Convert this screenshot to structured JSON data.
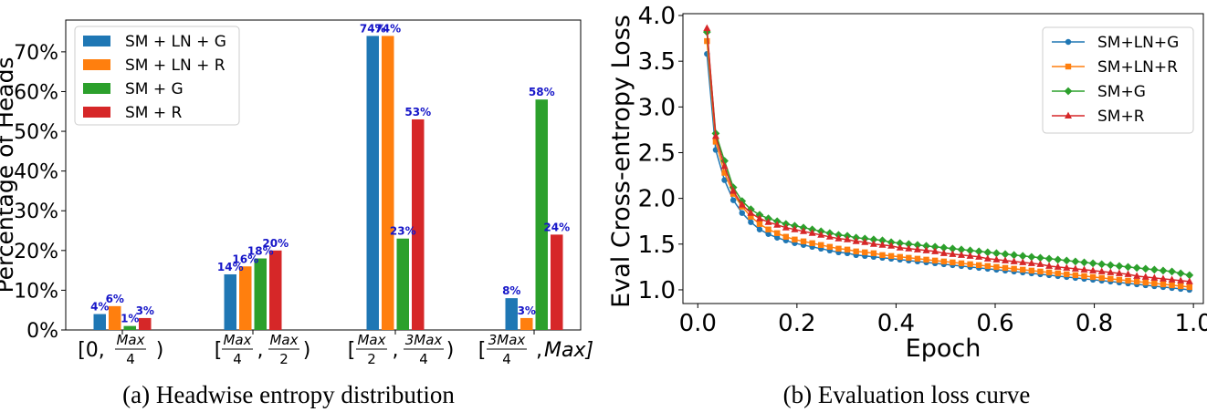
{
  "chart_data": [
    {
      "type": "bar",
      "caption": "(a) Headwise entropy distribution",
      "ylabel": "Percentage of Heads",
      "ylim": [
        0,
        78
      ],
      "yticks": [
        "0%",
        "10%",
        "20%",
        "30%",
        "40%",
        "50%",
        "60%",
        "70%"
      ],
      "yticks_values": [
        0,
        10,
        20,
        30,
        40,
        50,
        60,
        70
      ],
      "categories": [
        "[0, Max/4)",
        "[Max/4, Max/2)",
        "[Max/2, 3Max/4)",
        "[3Max/4, Max]"
      ],
      "legend_position": "top-left",
      "series": [
        {
          "name": "SM + LN + G",
          "color": "#1f77b4",
          "values": [
            4,
            14,
            74,
            8
          ],
          "labels": [
            "4%",
            "14%",
            "74%",
            "8%"
          ]
        },
        {
          "name": "SM + LN + R",
          "color": "#ff7f0e",
          "values": [
            6,
            16,
            74,
            3
          ],
          "labels": [
            "6%",
            "16%",
            "74%",
            "3%"
          ]
        },
        {
          "name": "SM + G",
          "color": "#2ca02c",
          "values": [
            1,
            18,
            23,
            58
          ],
          "labels": [
            "1%",
            "18%",
            "23%",
            "58%"
          ]
        },
        {
          "name": "SM + R",
          "color": "#d62728",
          "values": [
            3,
            20,
            53,
            24
          ],
          "labels": [
            "3%",
            "20%",
            "53%",
            "24%"
          ]
        }
      ]
    },
    {
      "type": "line",
      "caption": "(b) Evaluation loss curve",
      "xlabel": "Epoch",
      "ylabel": "Eval Cross-entropy Loss",
      "xlim": [
        -0.03,
        1.02
      ],
      "ylim": [
        0.85,
        4.02
      ],
      "xticks": [
        "0.0",
        "0.2",
        "0.4",
        "0.6",
        "0.8",
        "1.0"
      ],
      "xticks_values": [
        0.0,
        0.2,
        0.4,
        0.6,
        0.8,
        1.0
      ],
      "yticks": [
        "1.0",
        "1.5",
        "2.0",
        "2.5",
        "3.0",
        "3.5",
        "4.0"
      ],
      "yticks_values": [
        1.0,
        1.5,
        2.0,
        2.5,
        3.0,
        3.5,
        4.0
      ],
      "legend_position": "top-right",
      "x": [
        0.0185,
        0.0362,
        0.0539,
        0.0716,
        0.0893,
        0.107,
        0.1247,
        0.1424,
        0.1601,
        0.1778,
        0.1955,
        0.2132,
        0.2309,
        0.2486,
        0.2663,
        0.284,
        0.3017,
        0.3194,
        0.3371,
        0.3548,
        0.3725,
        0.3902,
        0.4079,
        0.4256,
        0.4433,
        0.461,
        0.4787,
        0.4964,
        0.5141,
        0.5318,
        0.5495,
        0.5672,
        0.5849,
        0.6026,
        0.6203,
        0.638,
        0.6557,
        0.6734,
        0.6911,
        0.7088,
        0.7265,
        0.7442,
        0.7619,
        0.7796,
        0.7973,
        0.815,
        0.8327,
        0.8504,
        0.8681,
        0.8858,
        0.9035,
        0.9212,
        0.9389,
        0.9566,
        0.9743,
        0.992
      ],
      "series": [
        {
          "name": "SM+LN+G",
          "color": "#1f77b4",
          "marker": "circle",
          "values": [
            3.58,
            2.53,
            2.2,
            1.98,
            1.84,
            1.74,
            1.66,
            1.61,
            1.57,
            1.54,
            1.51,
            1.49,
            1.47,
            1.45,
            1.43,
            1.41,
            1.4,
            1.38,
            1.37,
            1.36,
            1.35,
            1.34,
            1.33,
            1.32,
            1.31,
            1.3,
            1.29,
            1.28,
            1.27,
            1.26,
            1.25,
            1.24,
            1.23,
            1.22,
            1.21,
            1.2,
            1.19,
            1.18,
            1.17,
            1.16,
            1.15,
            1.14,
            1.13,
            1.12,
            1.11,
            1.1,
            1.09,
            1.08,
            1.07,
            1.06,
            1.05,
            1.04,
            1.03,
            1.02,
            1.01,
            1.0
          ]
        },
        {
          "name": "SM+LN+R",
          "color": "#ff7f0e",
          "marker": "square",
          "values": [
            3.72,
            2.62,
            2.28,
            2.05,
            1.91,
            1.8,
            1.72,
            1.66,
            1.62,
            1.58,
            1.55,
            1.53,
            1.51,
            1.49,
            1.47,
            1.45,
            1.44,
            1.42,
            1.41,
            1.4,
            1.38,
            1.37,
            1.36,
            1.35,
            1.34,
            1.33,
            1.32,
            1.31,
            1.3,
            1.29,
            1.28,
            1.27,
            1.26,
            1.25,
            1.24,
            1.23,
            1.22,
            1.21,
            1.2,
            1.19,
            1.18,
            1.17,
            1.16,
            1.15,
            1.14,
            1.13,
            1.12,
            1.11,
            1.1,
            1.09,
            1.08,
            1.07,
            1.06,
            1.05,
            1.04,
            1.03
          ]
        },
        {
          "name": "SM+G",
          "color": "#2ca02c",
          "marker": "diamond",
          "values": [
            3.82,
            2.71,
            2.41,
            2.12,
            1.97,
            1.88,
            1.82,
            1.78,
            1.75,
            1.72,
            1.7,
            1.68,
            1.66,
            1.64,
            1.62,
            1.6,
            1.59,
            1.57,
            1.56,
            1.55,
            1.54,
            1.52,
            1.51,
            1.5,
            1.49,
            1.48,
            1.47,
            1.46,
            1.45,
            1.44,
            1.43,
            1.42,
            1.41,
            1.4,
            1.39,
            1.38,
            1.37,
            1.36,
            1.35,
            1.34,
            1.33,
            1.32,
            1.31,
            1.3,
            1.29,
            1.28,
            1.27,
            1.26,
            1.25,
            1.24,
            1.23,
            1.22,
            1.21,
            1.2,
            1.18,
            1.16
          ]
        },
        {
          "name": "SM+R",
          "color": "#d62728",
          "marker": "triangle",
          "values": [
            3.86,
            2.68,
            2.35,
            2.08,
            1.93,
            1.84,
            1.78,
            1.74,
            1.71,
            1.68,
            1.66,
            1.64,
            1.62,
            1.6,
            1.58,
            1.56,
            1.55,
            1.53,
            1.52,
            1.5,
            1.49,
            1.48,
            1.46,
            1.45,
            1.44,
            1.43,
            1.42,
            1.4,
            1.39,
            1.38,
            1.37,
            1.36,
            1.34,
            1.33,
            1.32,
            1.31,
            1.3,
            1.29,
            1.28,
            1.26,
            1.25,
            1.24,
            1.23,
            1.22,
            1.21,
            1.2,
            1.19,
            1.18,
            1.17,
            1.15,
            1.14,
            1.13,
            1.12,
            1.11,
            1.1,
            1.09
          ]
        }
      ]
    }
  ]
}
